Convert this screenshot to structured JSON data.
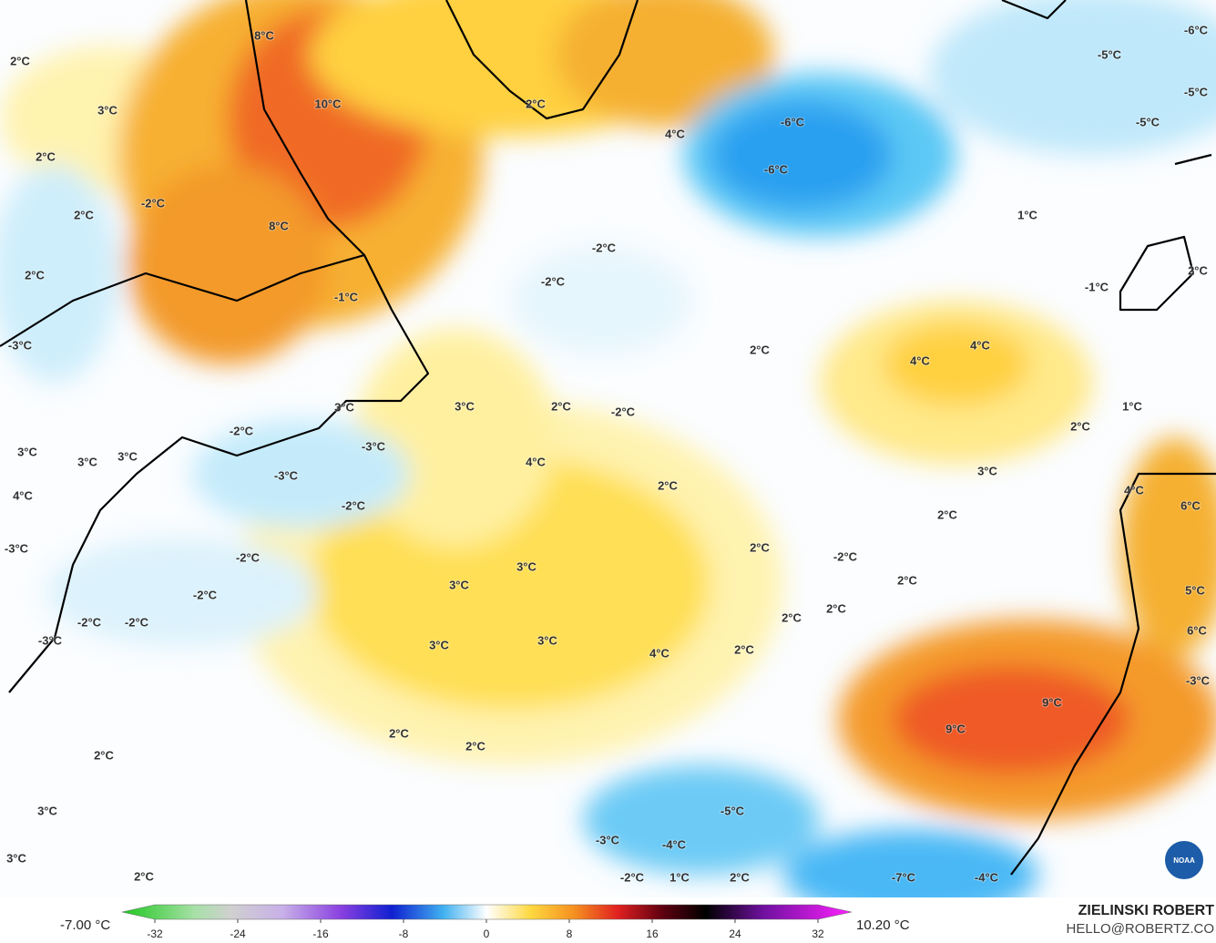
{
  "map_labels": [
    "8°C",
    "2°C",
    "10°C",
    "3°C",
    "2°C",
    "-2°C",
    "2°C",
    "8°C",
    "2°C",
    "-1°C",
    "-3°C",
    "3°C",
    "-2°C",
    "3°C",
    "3°C",
    "3°C",
    "-3°C",
    "-3°C",
    "-2°C",
    "4°C",
    "-3°C",
    "-2°C",
    "-2°C",
    "-2°C",
    "-2°C",
    "-3°C",
    "2°C",
    "2°C",
    "2°C",
    "3°C",
    "3°C",
    "2°C",
    "2°C",
    "4°C",
    "-6°C",
    "-6°C",
    "-6°C",
    "-5°C",
    "-5°C",
    "-5°C",
    "1°C",
    "-2°C",
    "-2°C",
    "2°C",
    "-1°C",
    "2°C",
    "4°C",
    "4°C",
    "3°C",
    "2°C",
    "-2°C",
    "1°C",
    "2°C",
    "4°C",
    "3°C",
    "2°C",
    "4°C",
    "6°C",
    "2°C",
    "2°C",
    "-2°C",
    "3°C",
    "3°C",
    "2°C",
    "5°C",
    "2°C",
    "2°C",
    "3°C",
    "3°C",
    "2°C",
    "4°C",
    "6°C",
    "-3°C",
    "9°C",
    "9°C",
    "-5°C",
    "-3°C",
    "-4°C",
    "-2°C",
    "1°C",
    "2°C",
    "-7°C",
    "-4°C"
  ],
  "colorbar": {
    "min_label": "-7.00 °C",
    "max_label": "10.20 °C",
    "ticks": [
      -32,
      -24,
      -16,
      -8,
      0,
      8,
      16,
      24,
      32
    ]
  },
  "credit": {
    "name": "ZIELINSKI ROBERT",
    "email": "HELLO@ROBERTZ.CO",
    "logo": "NOAA"
  }
}
